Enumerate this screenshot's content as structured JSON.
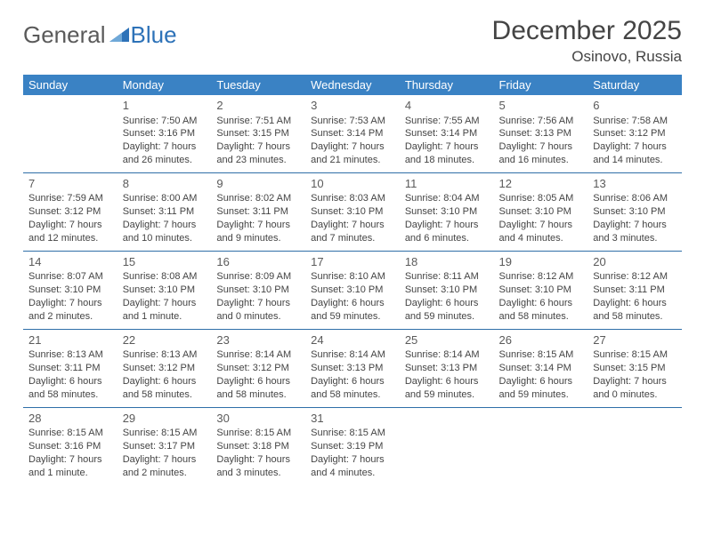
{
  "brand": {
    "part1": "General",
    "part2": "Blue"
  },
  "title": "December 2025",
  "location": "Osinovo, Russia",
  "colors": {
    "header_bg": "#3a82c4",
    "header_text": "#ffffff",
    "row_border": "#2f6fa8",
    "body_text": "#444444",
    "daynum_text": "#5a5a5a",
    "logo_general": "#5a5a5a",
    "logo_blue": "#2d72b8",
    "background": "#ffffff"
  },
  "typography": {
    "title_fontsize": 30,
    "location_fontsize": 17,
    "header_fontsize": 13,
    "daynum_fontsize": 13,
    "cell_fontsize": 11,
    "logo_fontsize": 26
  },
  "day_headers": [
    "Sunday",
    "Monday",
    "Tuesday",
    "Wednesday",
    "Thursday",
    "Friday",
    "Saturday"
  ],
  "weeks": [
    [
      null,
      {
        "n": "1",
        "sunrise": "Sunrise: 7:50 AM",
        "sunset": "Sunset: 3:16 PM",
        "day1": "Daylight: 7 hours",
        "day2": "and 26 minutes."
      },
      {
        "n": "2",
        "sunrise": "Sunrise: 7:51 AM",
        "sunset": "Sunset: 3:15 PM",
        "day1": "Daylight: 7 hours",
        "day2": "and 23 minutes."
      },
      {
        "n": "3",
        "sunrise": "Sunrise: 7:53 AM",
        "sunset": "Sunset: 3:14 PM",
        "day1": "Daylight: 7 hours",
        "day2": "and 21 minutes."
      },
      {
        "n": "4",
        "sunrise": "Sunrise: 7:55 AM",
        "sunset": "Sunset: 3:14 PM",
        "day1": "Daylight: 7 hours",
        "day2": "and 18 minutes."
      },
      {
        "n": "5",
        "sunrise": "Sunrise: 7:56 AM",
        "sunset": "Sunset: 3:13 PM",
        "day1": "Daylight: 7 hours",
        "day2": "and 16 minutes."
      },
      {
        "n": "6",
        "sunrise": "Sunrise: 7:58 AM",
        "sunset": "Sunset: 3:12 PM",
        "day1": "Daylight: 7 hours",
        "day2": "and 14 minutes."
      }
    ],
    [
      {
        "n": "7",
        "sunrise": "Sunrise: 7:59 AM",
        "sunset": "Sunset: 3:12 PM",
        "day1": "Daylight: 7 hours",
        "day2": "and 12 minutes."
      },
      {
        "n": "8",
        "sunrise": "Sunrise: 8:00 AM",
        "sunset": "Sunset: 3:11 PM",
        "day1": "Daylight: 7 hours",
        "day2": "and 10 minutes."
      },
      {
        "n": "9",
        "sunrise": "Sunrise: 8:02 AM",
        "sunset": "Sunset: 3:11 PM",
        "day1": "Daylight: 7 hours",
        "day2": "and 9 minutes."
      },
      {
        "n": "10",
        "sunrise": "Sunrise: 8:03 AM",
        "sunset": "Sunset: 3:10 PM",
        "day1": "Daylight: 7 hours",
        "day2": "and 7 minutes."
      },
      {
        "n": "11",
        "sunrise": "Sunrise: 8:04 AM",
        "sunset": "Sunset: 3:10 PM",
        "day1": "Daylight: 7 hours",
        "day2": "and 6 minutes."
      },
      {
        "n": "12",
        "sunrise": "Sunrise: 8:05 AM",
        "sunset": "Sunset: 3:10 PM",
        "day1": "Daylight: 7 hours",
        "day2": "and 4 minutes."
      },
      {
        "n": "13",
        "sunrise": "Sunrise: 8:06 AM",
        "sunset": "Sunset: 3:10 PM",
        "day1": "Daylight: 7 hours",
        "day2": "and 3 minutes."
      }
    ],
    [
      {
        "n": "14",
        "sunrise": "Sunrise: 8:07 AM",
        "sunset": "Sunset: 3:10 PM",
        "day1": "Daylight: 7 hours",
        "day2": "and 2 minutes."
      },
      {
        "n": "15",
        "sunrise": "Sunrise: 8:08 AM",
        "sunset": "Sunset: 3:10 PM",
        "day1": "Daylight: 7 hours",
        "day2": "and 1 minute."
      },
      {
        "n": "16",
        "sunrise": "Sunrise: 8:09 AM",
        "sunset": "Sunset: 3:10 PM",
        "day1": "Daylight: 7 hours",
        "day2": "and 0 minutes."
      },
      {
        "n": "17",
        "sunrise": "Sunrise: 8:10 AM",
        "sunset": "Sunset: 3:10 PM",
        "day1": "Daylight: 6 hours",
        "day2": "and 59 minutes."
      },
      {
        "n": "18",
        "sunrise": "Sunrise: 8:11 AM",
        "sunset": "Sunset: 3:10 PM",
        "day1": "Daylight: 6 hours",
        "day2": "and 59 minutes."
      },
      {
        "n": "19",
        "sunrise": "Sunrise: 8:12 AM",
        "sunset": "Sunset: 3:10 PM",
        "day1": "Daylight: 6 hours",
        "day2": "and 58 minutes."
      },
      {
        "n": "20",
        "sunrise": "Sunrise: 8:12 AM",
        "sunset": "Sunset: 3:11 PM",
        "day1": "Daylight: 6 hours",
        "day2": "and 58 minutes."
      }
    ],
    [
      {
        "n": "21",
        "sunrise": "Sunrise: 8:13 AM",
        "sunset": "Sunset: 3:11 PM",
        "day1": "Daylight: 6 hours",
        "day2": "and 58 minutes."
      },
      {
        "n": "22",
        "sunrise": "Sunrise: 8:13 AM",
        "sunset": "Sunset: 3:12 PM",
        "day1": "Daylight: 6 hours",
        "day2": "and 58 minutes."
      },
      {
        "n": "23",
        "sunrise": "Sunrise: 8:14 AM",
        "sunset": "Sunset: 3:12 PM",
        "day1": "Daylight: 6 hours",
        "day2": "and 58 minutes."
      },
      {
        "n": "24",
        "sunrise": "Sunrise: 8:14 AM",
        "sunset": "Sunset: 3:13 PM",
        "day1": "Daylight: 6 hours",
        "day2": "and 58 minutes."
      },
      {
        "n": "25",
        "sunrise": "Sunrise: 8:14 AM",
        "sunset": "Sunset: 3:13 PM",
        "day1": "Daylight: 6 hours",
        "day2": "and 59 minutes."
      },
      {
        "n": "26",
        "sunrise": "Sunrise: 8:15 AM",
        "sunset": "Sunset: 3:14 PM",
        "day1": "Daylight: 6 hours",
        "day2": "and 59 minutes."
      },
      {
        "n": "27",
        "sunrise": "Sunrise: 8:15 AM",
        "sunset": "Sunset: 3:15 PM",
        "day1": "Daylight: 7 hours",
        "day2": "and 0 minutes."
      }
    ],
    [
      {
        "n": "28",
        "sunrise": "Sunrise: 8:15 AM",
        "sunset": "Sunset: 3:16 PM",
        "day1": "Daylight: 7 hours",
        "day2": "and 1 minute."
      },
      {
        "n": "29",
        "sunrise": "Sunrise: 8:15 AM",
        "sunset": "Sunset: 3:17 PM",
        "day1": "Daylight: 7 hours",
        "day2": "and 2 minutes."
      },
      {
        "n": "30",
        "sunrise": "Sunrise: 8:15 AM",
        "sunset": "Sunset: 3:18 PM",
        "day1": "Daylight: 7 hours",
        "day2": "and 3 minutes."
      },
      {
        "n": "31",
        "sunrise": "Sunrise: 8:15 AM",
        "sunset": "Sunset: 3:19 PM",
        "day1": "Daylight: 7 hours",
        "day2": "and 4 minutes."
      },
      null,
      null,
      null
    ]
  ]
}
